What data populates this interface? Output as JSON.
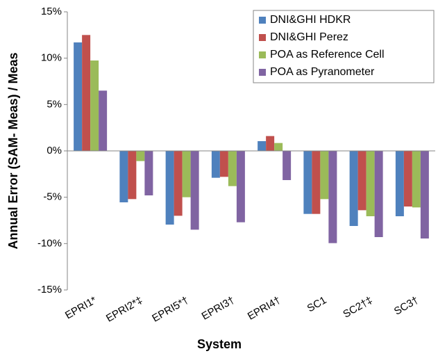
{
  "chart_data": {
    "type": "bar",
    "xlabel": "System",
    "ylabel": "Annual Error (SAM- Meas) / Meas",
    "categories": [
      "EPRI1*",
      "EPRI2*‡",
      "EPRI5*†",
      "EPRI3†",
      "EPRI4†",
      "SC1",
      "SC2†‡",
      "SC3†"
    ],
    "series": [
      {
        "name": "DNI&GHI HDKR",
        "color": "#4f81bd",
        "values": [
          11.7,
          -5.55,
          -7.95,
          -2.9,
          1.05,
          -6.8,
          -8.1,
          -7.05
        ]
      },
      {
        "name": "DNI&GHI Perez",
        "color": "#c0504d",
        "values": [
          12.5,
          -5.2,
          -7.0,
          -2.8,
          1.6,
          -6.8,
          -6.4,
          -6.0
        ]
      },
      {
        "name": "POA as Reference Cell",
        "color": "#9bbb59",
        "values": [
          9.75,
          -1.1,
          -5.0,
          -3.8,
          0.85,
          -5.2,
          -7.05,
          -6.1
        ]
      },
      {
        "name": "POA as Pyranometer",
        "color": "#8064a2",
        "values": [
          6.5,
          -4.8,
          -8.5,
          -7.7,
          -3.15,
          -9.95,
          -9.3,
          -9.45
        ]
      }
    ],
    "ylim": [
      -15,
      15
    ],
    "yticks": [
      {
        "value": -15,
        "label": "-15%"
      },
      {
        "value": -10,
        "label": "-10%"
      },
      {
        "value": -5,
        "label": "-5%"
      },
      {
        "value": 0,
        "label": "0%"
      },
      {
        "value": 5,
        "label": "5%"
      },
      {
        "value": 10,
        "label": "10%"
      },
      {
        "value": 15,
        "label": "15%"
      }
    ],
    "grid": false,
    "legend": "top-right"
  }
}
